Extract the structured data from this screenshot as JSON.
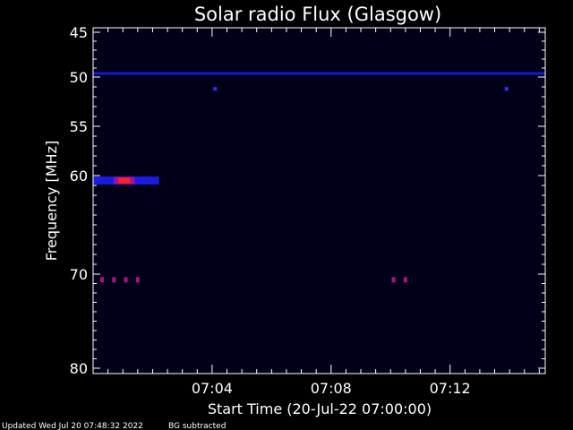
{
  "chart_data": {
    "type": "heatmap",
    "title": "Solar radio Flux (Glasgow)",
    "xlabel": "Start Time (20-Jul-22 07:00:00)",
    "ylabel": "Frequency [MHz]",
    "x_range_minutes": [
      0,
      15.2
    ],
    "y_range_mhz": [
      45,
      80
    ],
    "y_axis_direction": "increasing-downward",
    "y_scale": "non-linear",
    "x_ticks": [
      {
        "minute": 4,
        "label": "07:04"
      },
      {
        "minute": 8,
        "label": "07:08"
      },
      {
        "minute": 12,
        "label": "07:12"
      }
    ],
    "y_ticks": [
      {
        "mhz": 45,
        "label": "45"
      },
      {
        "mhz": 50,
        "label": "50"
      },
      {
        "mhz": 55,
        "label": "55"
      },
      {
        "mhz": 60,
        "label": "60"
      },
      {
        "mhz": 70,
        "label": "70"
      },
      {
        "mhz": 80,
        "label": "80"
      }
    ],
    "features": [
      {
        "kind": "band",
        "mhz": 49.6,
        "x_start": 0.0,
        "x_end": 15.2,
        "color": "#1a1aff",
        "intensity": "moderate"
      },
      {
        "kind": "band",
        "mhz": 60.5,
        "x_start": 0.0,
        "x_end": 2.2,
        "color": "#2020ff",
        "intensity": "strong"
      },
      {
        "kind": "hotspot",
        "mhz": 60.5,
        "x_start": 0.7,
        "x_end": 1.4,
        "color": "#ff2020",
        "intensity": "very strong"
      },
      {
        "kind": "spots",
        "mhz": 70.6,
        "minutes": [
          0.3,
          0.7,
          1.1,
          1.5,
          10.1,
          10.5
        ],
        "color": "#b01080"
      },
      {
        "kind": "spot",
        "mhz": 51.2,
        "minute": 4.1,
        "color": "#3030ff"
      },
      {
        "kind": "spot",
        "mhz": 51.2,
        "minute": 13.9,
        "color": "#3030ff"
      }
    ],
    "background_color": "#000018",
    "colormap": [
      "#000018",
      "#1010ff",
      "#a010a0",
      "#ff2020"
    ]
  },
  "footer": {
    "updated": "Updated Wed Jul 20 07:48:32 2022",
    "bg_note": "BG subtracted"
  }
}
